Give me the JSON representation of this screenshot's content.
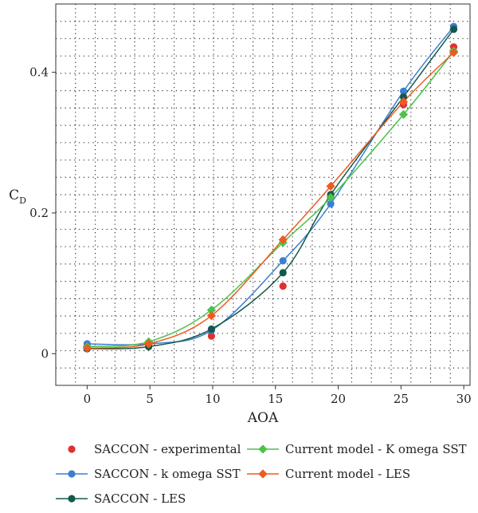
{
  "chart_data": {
    "type": "line",
    "xlabel": "AOA",
    "ylabel_main": "C",
    "ylabel_sub": "D",
    "xlim": [
      -2.5,
      30.5
    ],
    "ylim": [
      -0.045,
      0.497
    ],
    "xticks": [
      0,
      5,
      10,
      15,
      20,
      25,
      30
    ],
    "xtick_labels": [
      "0",
      "5",
      "10",
      "15",
      "20",
      "25",
      "30"
    ],
    "yticks": [
      0,
      0.2,
      0.4
    ],
    "ytick_labels": [
      "0",
      "0.2",
      "0.4"
    ],
    "grid": true,
    "legend_position": "bottom",
    "series": [
      {
        "name": "SACCON - experimental",
        "color": "#e03030",
        "marker": "circle",
        "line": false,
        "x": [
          0,
          4.9,
          9.9,
          15.6,
          19.4,
          25.2,
          29.2
        ],
        "y": [
          0.01,
          0.012,
          0.025,
          0.096,
          0.226,
          0.354,
          0.436
        ]
      },
      {
        "name": "SACCON - k omega SST",
        "color": "#3a7fd0",
        "marker": "circle",
        "line": true,
        "x": [
          0,
          4.9,
          9.9,
          15.6,
          19.4,
          25.2,
          29.2
        ],
        "y": [
          0.014,
          0.014,
          0.033,
          0.132,
          0.213,
          0.373,
          0.465
        ]
      },
      {
        "name": "SACCON - LES",
        "color": "#145a4c",
        "marker": "circle",
        "line": true,
        "x": [
          0,
          4.9,
          9.9,
          15.6,
          19.4,
          25.2,
          29.2
        ],
        "y": [
          0.007,
          0.01,
          0.035,
          0.115,
          0.226,
          0.365,
          0.461
        ]
      },
      {
        "name": "Current model - K omega SST",
        "color": "#4cc24a",
        "marker": "diamond",
        "line": true,
        "x": [
          0,
          4.9,
          9.9,
          15.6,
          19.4,
          25.2,
          29.2
        ],
        "y": [
          0.01,
          0.017,
          0.062,
          0.158,
          0.222,
          0.34,
          0.43
        ]
      },
      {
        "name": "Current model - LES",
        "color": "#ef5a22",
        "marker": "diamond",
        "line": true,
        "x": [
          0,
          4.9,
          9.9,
          15.6,
          19.4,
          25.2,
          29.2
        ],
        "y": [
          0.008,
          0.014,
          0.054,
          0.162,
          0.238,
          0.358,
          0.428
        ]
      }
    ]
  }
}
